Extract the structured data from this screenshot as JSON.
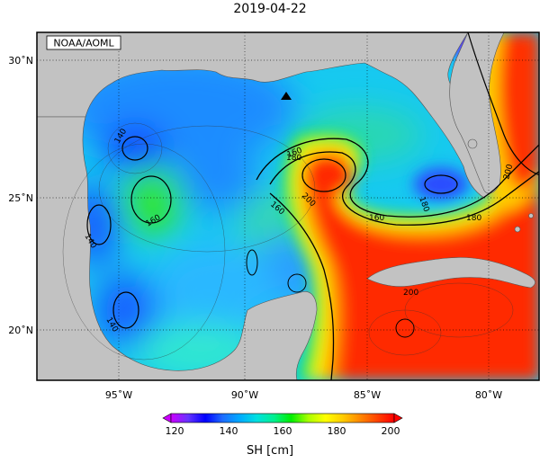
{
  "title": "2019-04-22",
  "source_label": "NOAA/AOML",
  "lat_ticks": [
    "30˚N",
    "25˚N",
    "20˚N"
  ],
  "lon_ticks": [
    "95˚W",
    "90˚W",
    "85˚W",
    "80˚W"
  ],
  "contour_labels": [
    "140",
    "140",
    "140",
    "160",
    "160",
    "160",
    "160",
    "180",
    "180",
    "180",
    "200",
    "200",
    "200"
  ],
  "colorbar": {
    "label": "SH [cm]",
    "ticks": [
      "120",
      "140",
      "160",
      "180",
      "200"
    ],
    "min": 120,
    "max": 200,
    "colors": [
      "#cc00ff",
      "#6633ff",
      "#0000ff",
      "#1e6cff",
      "#00aaff",
      "#00e0e0",
      "#00f090",
      "#00ee00",
      "#aaff00",
      "#ffff00",
      "#ffcc00",
      "#ff8800",
      "#ff4400",
      "#ff0000"
    ]
  },
  "colors": {
    "land": "#c2c2c2",
    "frame": "#000000"
  },
  "marker": "triangle-marker"
}
